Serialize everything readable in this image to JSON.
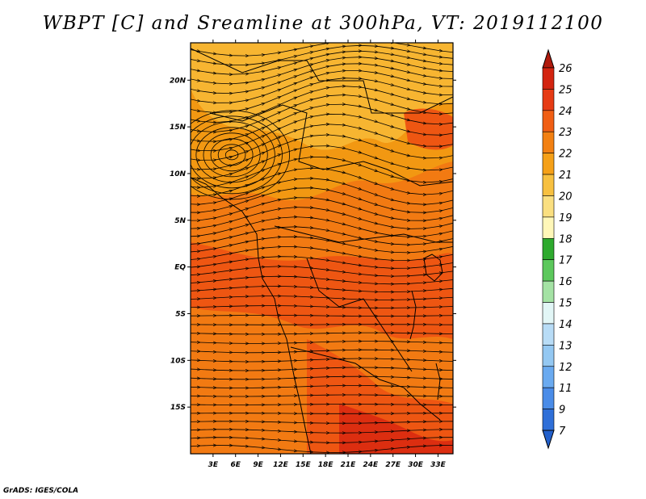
{
  "title": "WBPT [C] and Sreamline at 300hPa, VT: 2019112100",
  "credit": "GrADS: IGES/COLA",
  "map": {
    "lon_range": [
      0,
      35
    ],
    "lat_range": [
      -20,
      24
    ],
    "x_ticks": [
      "3E",
      "6E",
      "9E",
      "12E",
      "15E",
      "18E",
      "21E",
      "24E",
      "27E",
      "30E",
      "33E"
    ],
    "y_ticks": [
      "20N",
      "15N",
      "10N",
      "5N",
      "EQ",
      "5S",
      "10S",
      "15S"
    ],
    "field_colors": {
      "level_20_21": "#f7b531",
      "level_21_22": "#f29812",
      "level_22_23": "#f27a12",
      "level_23_24": "#ee5612",
      "level_24_25": "#dc2e10"
    }
  },
  "colorbar": {
    "labels": [
      "26",
      "25",
      "24",
      "23",
      "22",
      "21",
      "20",
      "19",
      "18",
      "17",
      "16",
      "15",
      "14",
      "13",
      "12",
      "11",
      "9",
      "7"
    ],
    "colors": [
      "#b01a0c",
      "#d32410",
      "#e63b14",
      "#f05e14",
      "#f28012",
      "#f5a018",
      "#f7c040",
      "#fadf80",
      "#fff7b8",
      "#2eaa2e",
      "#5cc85c",
      "#a4e2a4",
      "#e2f6f6",
      "#b8dcf6",
      "#94c8f2",
      "#6aaaf0",
      "#4a8ce8",
      "#2f6fd8",
      "#2260cc"
    ]
  }
}
